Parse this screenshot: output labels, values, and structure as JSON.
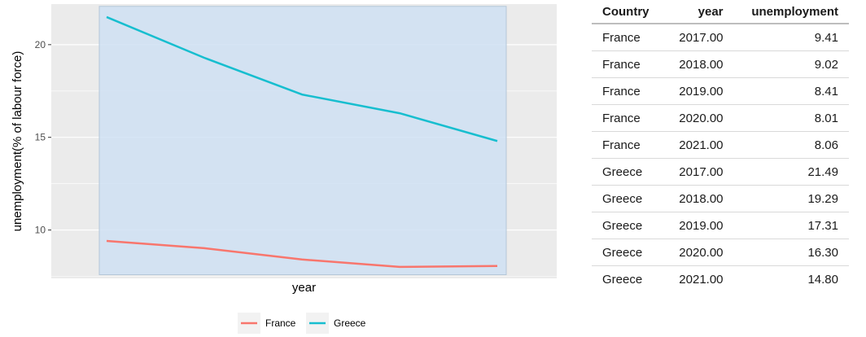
{
  "chart_data": {
    "type": "line",
    "xlabel": "year",
    "ylabel": "unemployment(% of labour force)",
    "x": [
      2017,
      2018,
      2019,
      2020,
      2021
    ],
    "ylim": [
      7.5,
      22
    ],
    "yticks": [
      10,
      15,
      20
    ],
    "grid": true,
    "legend_position": "bottom",
    "shaded_region": {
      "x": [
        2017,
        2021
      ],
      "y": [
        7.5,
        22
      ],
      "color": "#cfe0f3"
    },
    "series": [
      {
        "name": "France",
        "color": "#f8766d",
        "values": [
          9.41,
          9.02,
          8.41,
          8.01,
          8.06
        ]
      },
      {
        "name": "Greece",
        "color": "#17becf",
        "values": [
          21.49,
          19.29,
          17.31,
          16.3,
          14.8
        ]
      }
    ]
  },
  "table": {
    "headers": [
      "Country",
      "year",
      "unemployment"
    ],
    "rows": [
      [
        "France",
        "2017.00",
        "9.41"
      ],
      [
        "France",
        "2018.00",
        "9.02"
      ],
      [
        "France",
        "2019.00",
        "8.41"
      ],
      [
        "France",
        "2020.00",
        "8.01"
      ],
      [
        "France",
        "2021.00",
        "8.06"
      ],
      [
        "Greece",
        "2017.00",
        "21.49"
      ],
      [
        "Greece",
        "2018.00",
        "19.29"
      ],
      [
        "Greece",
        "2019.00",
        "17.31"
      ],
      [
        "Greece",
        "2020.00",
        "16.30"
      ],
      [
        "Greece",
        "2021.00",
        "14.80"
      ]
    ]
  }
}
